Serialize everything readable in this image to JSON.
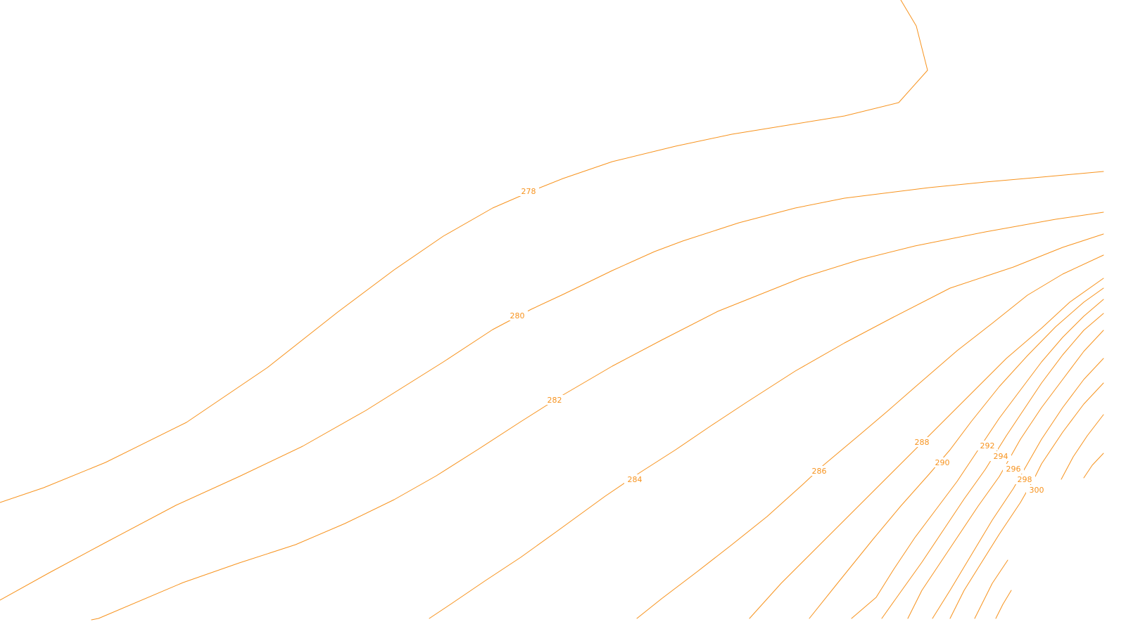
{
  "map": {
    "style": {
      "background": "#ffffff",
      "contour_color": "#f7931e"
    },
    "contours": [
      {
        "id": "278",
        "label": "278"
      },
      {
        "id": "280",
        "label": "280"
      },
      {
        "id": "282",
        "label": "282"
      },
      {
        "id": "284",
        "label": "284"
      },
      {
        "id": "286",
        "label": "286"
      },
      {
        "id": "288",
        "label": "288"
      },
      {
        "id": "290",
        "label": "290"
      },
      {
        "id": "292",
        "label": "292"
      },
      {
        "id": "294",
        "label": "294"
      },
      {
        "id": "296",
        "label": "296"
      },
      {
        "id": "298",
        "label": "298"
      },
      {
        "id": "300",
        "label": "300"
      }
    ]
  }
}
